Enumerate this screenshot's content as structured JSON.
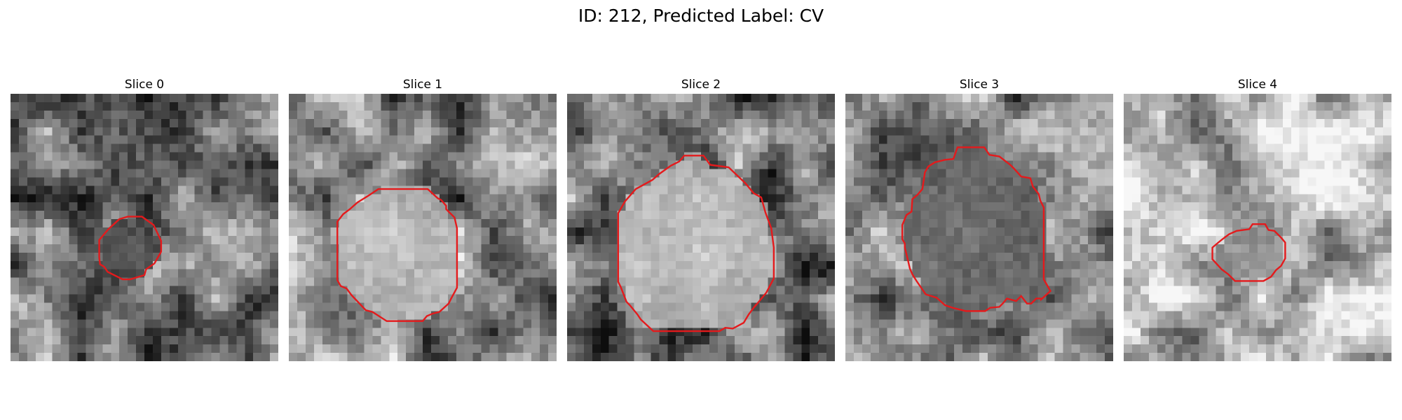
{
  "figure": {
    "title": "ID: 212, Predicted Label: CV"
  },
  "colors": {
    "contour": "#e41a1c",
    "background": "#ffffff"
  },
  "panels": [
    {
      "label": "Slice 0",
      "mean_intensity": 0.48,
      "nodule_brightness": 0.32,
      "contour": [
        [
          14,
          14.7
        ],
        [
          15.7,
          14.7
        ],
        [
          17.1,
          15.7
        ],
        [
          18,
          17.6
        ],
        [
          18,
          18.9
        ],
        [
          17.2,
          20.3
        ],
        [
          16.2,
          21
        ],
        [
          16,
          21.7
        ],
        [
          14.3,
          22.2
        ],
        [
          13.4,
          22.2
        ],
        [
          11.6,
          21.3
        ],
        [
          11.2,
          20.7
        ],
        [
          10.7,
          20.4
        ],
        [
          10.6,
          19.6
        ],
        [
          10.6,
          17.5
        ],
        [
          11.7,
          16.2
        ],
        [
          13,
          15
        ],
        [
          14,
          14.7
        ]
      ]
    },
    {
      "label": "Slice 1",
      "mean_intensity": 0.5,
      "nodule_brightness": 0.85,
      "contour": [
        [
          10.7,
          11.4
        ],
        [
          16.6,
          11.4
        ],
        [
          17.8,
          12.5
        ],
        [
          18.2,
          12.7
        ],
        [
          18.8,
          13.4
        ],
        [
          18.8,
          13.8
        ],
        [
          19.8,
          14.8
        ],
        [
          20.1,
          16.1
        ],
        [
          20.1,
          23.2
        ],
        [
          19.4,
          24.5
        ],
        [
          19.1,
          25.1
        ],
        [
          18,
          26.1
        ],
        [
          17.2,
          26.3
        ],
        [
          16.5,
          26.6
        ],
        [
          16,
          27.2
        ],
        [
          11.7,
          27.2
        ],
        [
          10,
          26.1
        ],
        [
          9.2,
          25.9
        ],
        [
          7.5,
          24.1
        ],
        [
          6.9,
          23.3
        ],
        [
          6.2,
          23
        ],
        [
          5.8,
          22.3
        ],
        [
          5.8,
          15.3
        ],
        [
          6.5,
          14.4
        ],
        [
          7.3,
          13.8
        ],
        [
          8.2,
          13
        ],
        [
          9.5,
          12.2
        ],
        [
          10.7,
          11.4
        ]
      ]
    },
    {
      "label": "Slice 2",
      "mean_intensity": 0.42,
      "nodule_brightness": 0.9,
      "contour": [
        [
          14,
          7.4
        ],
        [
          16.3,
          7.4
        ],
        [
          17.1,
          8.5
        ],
        [
          19.3,
          8.8
        ],
        [
          21.3,
          10.7
        ],
        [
          22.3,
          11.9
        ],
        [
          23.2,
          12.4
        ],
        [
          23.7,
          14.2
        ],
        [
          24.4,
          16.1
        ],
        [
          24.7,
          18.4
        ],
        [
          24.7,
          22.1
        ],
        [
          23.8,
          23.8
        ],
        [
          22.4,
          25.5
        ],
        [
          22.6,
          25.2
        ],
        [
          21.7,
          26.4
        ],
        [
          21.1,
          27.4
        ],
        [
          19.8,
          28.1
        ],
        [
          18.9,
          28
        ],
        [
          18.2,
          28.4
        ],
        [
          10.3,
          28.4
        ],
        [
          8.8,
          27
        ],
        [
          8.4,
          26.4
        ],
        [
          7.5,
          25.3
        ],
        [
          7.1,
          24.9
        ],
        [
          6.4,
          23.1
        ],
        [
          6.1,
          22.5
        ],
        [
          6.1,
          14.3
        ],
        [
          6.9,
          12.9
        ],
        [
          8.2,
          11.4
        ],
        [
          10.2,
          10.3
        ],
        [
          11,
          9.6
        ],
        [
          12.4,
          8.6
        ],
        [
          13.4,
          8.1
        ],
        [
          14,
          7.4
        ]
      ]
    },
    {
      "label": "Slice 3",
      "mean_intensity": 0.52,
      "nodule_brightness": 0.5,
      "contour": [
        [
          13.4,
          6.4
        ],
        [
          16.6,
          6.4
        ],
        [
          17.2,
          7.3
        ],
        [
          18.4,
          7.5
        ],
        [
          19.7,
          8.5
        ],
        [
          20.1,
          8.9
        ],
        [
          21,
          9.9
        ],
        [
          22.1,
          10.1
        ],
        [
          22.4,
          11.1
        ],
        [
          23.1,
          12
        ],
        [
          23.3,
          12.8
        ],
        [
          23.7,
          13.6
        ],
        [
          23.7,
          22.2
        ],
        [
          24.5,
          23.6
        ],
        [
          23.4,
          24.6
        ],
        [
          23.4,
          24.5
        ],
        [
          22.8,
          24.5
        ],
        [
          22.2,
          25.1
        ],
        [
          21.7,
          25.1
        ],
        [
          21,
          24.2
        ],
        [
          20.4,
          24.8
        ],
        [
          19.3,
          24.5
        ],
        [
          18.8,
          25.1
        ],
        [
          18.4,
          25.5
        ],
        [
          17.3,
          25.6
        ],
        [
          16.7,
          26
        ],
        [
          14.4,
          26
        ],
        [
          12.8,
          25.6
        ],
        [
          11.9,
          25.3
        ],
        [
          10.9,
          24.4
        ],
        [
          9.6,
          24
        ],
        [
          8.5,
          22.4
        ],
        [
          8,
          21.6
        ],
        [
          7.7,
          20.9
        ],
        [
          7.4,
          19.6
        ],
        [
          7.1,
          18.4
        ],
        [
          7.1,
          17.9
        ],
        [
          6.8,
          17.4
        ],
        [
          6.8,
          15.7
        ],
        [
          7.3,
          14.5
        ],
        [
          7.9,
          14.1
        ],
        [
          8,
          12.6
        ],
        [
          8.6,
          12.1
        ],
        [
          9.2,
          11.4
        ],
        [
          9.5,
          9.4
        ],
        [
          9.9,
          8.7
        ],
        [
          10.7,
          8.2
        ],
        [
          11.9,
          7.9
        ],
        [
          12.9,
          7.8
        ],
        [
          13.4,
          6.4
        ]
      ]
    },
    {
      "label": "Slice 4",
      "mean_intensity": 0.72,
      "nodule_brightness": 0.6,
      "contour": [
        [
          15.4,
          15.6
        ],
        [
          16.9,
          15.6
        ],
        [
          17.3,
          16.3
        ],
        [
          18,
          16.4
        ],
        [
          18.8,
          17.2
        ],
        [
          19.3,
          17.8
        ],
        [
          19.3,
          19.7
        ],
        [
          18.8,
          20.6
        ],
        [
          18.2,
          21.1
        ],
        [
          17.6,
          21.9
        ],
        [
          16.7,
          22.4
        ],
        [
          13.3,
          22.4
        ],
        [
          12.5,
          21.6
        ],
        [
          11.7,
          21
        ],
        [
          10.6,
          19.8
        ],
        [
          10.6,
          18.4
        ],
        [
          11.3,
          17.8
        ],
        [
          11.8,
          17.4
        ],
        [
          12.6,
          16.8
        ],
        [
          13.5,
          16.4
        ],
        [
          15,
          16.2
        ],
        [
          15.4,
          15.6
        ]
      ]
    }
  ]
}
